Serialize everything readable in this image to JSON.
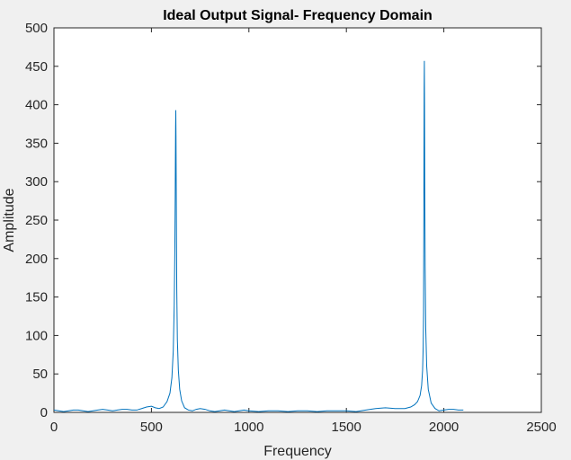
{
  "chart_data": {
    "type": "line",
    "title": "Ideal Output Signal- Frequency Domain",
    "xlabel": "Frequency",
    "ylabel": "Amplitude",
    "xlim": [
      0,
      2500
    ],
    "ylim": [
      0,
      500
    ],
    "xticks": [
      0,
      500,
      1000,
      1500,
      2000,
      2500
    ],
    "yticks": [
      0,
      50,
      100,
      150,
      200,
      250,
      300,
      350,
      400,
      450,
      500
    ],
    "grid": false,
    "line_color": "#0072bd",
    "series": [
      {
        "x": [
          0,
          25,
          50,
          75,
          100,
          125,
          150,
          175,
          200,
          225,
          250,
          275,
          300,
          325,
          350,
          375,
          400,
          425,
          450,
          475,
          500,
          520,
          540,
          560,
          580,
          595,
          605,
          612,
          617,
          620,
          622,
          623,
          624,
          625,
          626,
          628,
          630,
          633,
          638,
          645,
          655,
          670,
          690,
          710,
          730,
          750,
          775,
          800,
          825,
          850,
          875,
          900,
          925,
          950,
          975,
          1000,
          1050,
          1100,
          1150,
          1200,
          1250,
          1300,
          1350,
          1400,
          1450,
          1500,
          1550,
          1600,
          1650,
          1700,
          1750,
          1800,
          1830,
          1850,
          1865,
          1878,
          1886,
          1891,
          1894,
          1896,
          1897,
          1898,
          1899,
          1900,
          1901,
          1902,
          1904,
          1907,
          1912,
          1920,
          1935,
          1955,
          1975,
          2000,
          2025,
          2050,
          2075,
          2100
        ],
        "y": [
          3,
          2,
          1,
          2,
          3,
          3,
          2,
          1,
          2,
          3,
          4,
          3,
          2,
          3,
          4,
          4,
          3,
          3,
          5,
          7,
          8,
          6,
          5,
          7,
          14,
          25,
          45,
          80,
          140,
          210,
          280,
          330,
          370,
          393,
          360,
          250,
          160,
          95,
          55,
          30,
          15,
          6,
          3,
          2,
          4,
          5,
          4,
          2,
          1,
          2,
          3,
          2,
          1,
          2,
          3,
          2,
          1,
          2,
          2,
          1,
          2,
          2,
          1,
          2,
          2,
          2,
          1,
          3,
          5,
          6,
          5,
          5,
          7,
          10,
          14,
          22,
          35,
          55,
          85,
          130,
          220,
          330,
          420,
          457,
          400,
          300,
          190,
          110,
          60,
          30,
          12,
          5,
          2,
          3,
          4,
          4,
          3,
          3
        ]
      }
    ]
  }
}
